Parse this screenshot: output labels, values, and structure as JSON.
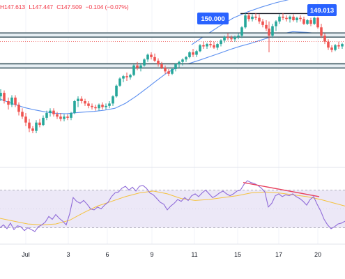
{
  "ohlc_readout": {
    "high": "H147.613",
    "low": "L147.447",
    "close": "C147.509",
    "change": "−0.104 (−0.07%)"
  },
  "chart_data": {
    "type": "candlestick",
    "title": "",
    "xlabel": "",
    "ylabel": "",
    "x_ticks": [
      "Jul",
      "3",
      "6",
      "9",
      "11",
      "15",
      "17",
      "20"
    ],
    "ylim": [
      143.8,
      150.6
    ],
    "price_labels": [
      "150.000",
      "149.013"
    ],
    "colors": {
      "up": "#26a69a",
      "down": "#ef5350",
      "ma": "#5b8ff0",
      "rsi": "#8f6ad8",
      "rsi_ma": "#f5c23e",
      "support": "#2f4a55",
      "annotation": "#e8425f"
    },
    "ma_line": [
      [
        0,
        146.44
      ],
      [
        8,
        146.35
      ],
      [
        20,
        146.22
      ],
      [
        35,
        146.08
      ],
      [
        50,
        145.98
      ],
      [
        65,
        145.9
      ],
      [
        80,
        145.84
      ],
      [
        95,
        145.82
      ],
      [
        108,
        145.86
      ],
      [
        120,
        145.89
      ],
      [
        135,
        145.92
      ],
      [
        150,
        145.97
      ],
      [
        165,
        146.05
      ],
      [
        180,
        146.26
      ],
      [
        195,
        146.55
      ],
      [
        210,
        146.88
      ],
      [
        225,
        147.22
      ],
      [
        240,
        147.55
      ],
      [
        255,
        147.78
      ],
      [
        270,
        147.92
      ],
      [
        285,
        148.06
      ],
      [
        300,
        148.21
      ],
      [
        315,
        148.36
      ],
      [
        330,
        148.52
      ],
      [
        345,
        148.66
      ],
      [
        360,
        148.78
      ],
      [
        375,
        148.92
      ],
      [
        390,
        149.06
      ],
      [
        405,
        149.19
      ],
      [
        420,
        149.27
      ],
      [
        440,
        149.24
      ],
      [
        460,
        149.19
      ],
      [
        480,
        149.2
      ],
      [
        495,
        149.2
      ]
    ],
    "ma_line_upper": [
      [
        275,
        148.72
      ],
      [
        295,
        149.12
      ],
      [
        315,
        149.5
      ],
      [
        335,
        149.85
      ],
      [
        355,
        150.1
      ],
      [
        375,
        150.3
      ],
      [
        395,
        150.48
      ],
      [
        415,
        150.62
      ]
    ],
    "horizontal_lines": [
      {
        "y": 149.13,
        "name": "resistance"
      },
      {
        "y": 147.83,
        "name": "support"
      },
      {
        "y": 148.86,
        "name": "dotted-last-price"
      }
    ],
    "trend_lines": [
      {
        "x1": 345,
        "y1": 150.03,
        "x2": 472,
        "y2": 150.03,
        "name": "top-line"
      }
    ],
    "candles": [
      [
        1,
        146.55,
        146.85,
        146.35,
        146.7
      ],
      [
        6,
        146.7,
        146.8,
        146.25,
        146.35
      ],
      [
        12,
        146.35,
        146.5,
        146.0,
        146.2
      ],
      [
        17,
        146.2,
        146.6,
        146.1,
        146.5
      ],
      [
        22,
        146.5,
        146.6,
        146.1,
        146.2
      ],
      [
        27,
        146.2,
        146.3,
        145.75,
        145.9
      ],
      [
        32,
        145.9,
        146.05,
        145.6,
        145.7
      ],
      [
        37,
        145.7,
        145.85,
        145.3,
        145.45
      ],
      [
        42,
        145.45,
        145.6,
        145.05,
        145.2
      ],
      [
        47,
        145.2,
        145.3,
        145.0,
        145.1
      ],
      [
        52,
        145.1,
        145.55,
        145.0,
        145.45
      ],
      [
        57,
        145.45,
        145.6,
        145.25,
        145.35
      ],
      [
        62,
        145.35,
        145.75,
        145.3,
        145.65
      ],
      [
        67,
        145.65,
        145.95,
        145.55,
        145.85
      ],
      [
        72,
        145.85,
        146.05,
        145.7,
        145.95
      ],
      [
        77,
        145.95,
        146.05,
        145.7,
        145.8
      ],
      [
        82,
        145.8,
        145.9,
        145.6,
        145.7
      ],
      [
        87,
        145.7,
        145.85,
        145.5,
        145.6
      ],
      [
        92,
        145.6,
        145.8,
        145.5,
        145.7
      ],
      [
        97,
        145.7,
        145.8,
        145.55,
        145.65
      ],
      [
        102,
        145.65,
        145.9,
        145.55,
        145.85
      ],
      [
        107,
        145.85,
        146.4,
        145.8,
        146.35
      ],
      [
        112,
        146.35,
        146.55,
        146.1,
        146.45
      ],
      [
        117,
        146.45,
        146.55,
        146.25,
        146.35
      ],
      [
        122,
        146.35,
        146.45,
        146.15,
        146.25
      ],
      [
        127,
        146.25,
        146.35,
        146.05,
        146.15
      ],
      [
        132,
        146.15,
        146.25,
        146.0,
        146.1
      ],
      [
        137,
        146.1,
        146.2,
        145.95,
        146.05
      ],
      [
        142,
        146.05,
        146.25,
        145.95,
        146.2
      ],
      [
        147,
        146.2,
        146.3,
        146.0,
        146.1
      ],
      [
        152,
        146.1,
        146.25,
        146.0,
        146.15
      ],
      [
        157,
        146.15,
        146.35,
        146.05,
        146.25
      ],
      [
        162,
        146.25,
        146.6,
        146.15,
        146.55
      ],
      [
        167,
        146.55,
        147.05,
        146.5,
        147.0
      ],
      [
        172,
        147.0,
        147.35,
        146.95,
        147.3
      ],
      [
        177,
        147.3,
        147.45,
        147.15,
        147.4
      ],
      [
        182,
        147.4,
        147.55,
        147.2,
        147.35
      ],
      [
        187,
        147.35,
        147.5,
        147.25,
        147.45
      ],
      [
        192,
        147.45,
        147.9,
        147.4,
        147.85
      ],
      [
        197,
        147.85,
        148.0,
        147.65,
        147.75
      ],
      [
        202,
        147.75,
        147.95,
        147.6,
        147.85
      ],
      [
        207,
        147.85,
        148.15,
        147.8,
        148.1
      ],
      [
        212,
        148.1,
        148.35,
        148.0,
        148.3
      ],
      [
        217,
        148.3,
        148.4,
        148.1,
        148.2
      ],
      [
        222,
        148.2,
        148.35,
        148.0,
        148.05
      ],
      [
        227,
        148.05,
        148.15,
        147.8,
        147.9
      ],
      [
        232,
        147.9,
        148.0,
        147.7,
        147.75
      ],
      [
        237,
        147.75,
        147.85,
        147.5,
        147.6
      ],
      [
        242,
        147.6,
        147.7,
        147.4,
        147.5
      ],
      [
        247,
        147.5,
        147.75,
        147.45,
        147.7
      ],
      [
        252,
        147.7,
        147.95,
        147.6,
        147.9
      ],
      [
        257,
        147.9,
        148.05,
        147.75,
        148.0
      ],
      [
        262,
        148.0,
        148.15,
        147.85,
        148.1
      ],
      [
        267,
        148.1,
        148.25,
        148.0,
        148.2
      ],
      [
        272,
        148.2,
        148.45,
        148.15,
        148.4
      ],
      [
        277,
        148.4,
        148.55,
        148.2,
        148.3
      ],
      [
        282,
        148.3,
        148.5,
        148.2,
        148.45
      ],
      [
        287,
        148.45,
        148.75,
        148.4,
        148.7
      ],
      [
        292,
        148.7,
        148.85,
        148.55,
        148.65
      ],
      [
        297,
        148.65,
        148.8,
        148.55,
        148.75
      ],
      [
        302,
        148.75,
        148.9,
        148.6,
        148.7
      ],
      [
        307,
        148.7,
        148.85,
        148.55,
        148.6
      ],
      [
        312,
        148.6,
        148.8,
        148.5,
        148.75
      ],
      [
        317,
        148.75,
        148.95,
        148.65,
        148.9
      ],
      [
        322,
        148.9,
        149.1,
        148.8,
        149.05
      ],
      [
        327,
        149.05,
        149.2,
        148.9,
        149.0
      ],
      [
        332,
        149.0,
        149.1,
        148.85,
        148.95
      ],
      [
        337,
        148.95,
        149.1,
        148.85,
        149.05
      ],
      [
        342,
        149.05,
        149.2,
        148.95,
        149.1
      ],
      [
        347,
        149.1,
        149.5,
        149.0,
        149.45
      ],
      [
        352,
        149.45,
        150.05,
        149.4,
        149.95
      ],
      [
        357,
        149.95,
        150.08,
        149.7,
        149.8
      ],
      [
        362,
        149.8,
        150.0,
        149.7,
        149.9
      ],
      [
        367,
        149.9,
        150.05,
        149.75,
        149.85
      ],
      [
        372,
        149.85,
        150.0,
        149.6,
        149.7
      ],
      [
        377,
        149.7,
        149.8,
        149.45,
        149.55
      ],
      [
        382,
        149.55,
        149.75,
        149.3,
        149.4
      ],
      [
        386,
        149.4,
        149.7,
        148.4,
        149.1
      ],
      [
        391,
        149.1,
        149.6,
        149.0,
        149.5
      ],
      [
        396,
        149.5,
        149.75,
        149.3,
        149.7
      ],
      [
        401,
        149.7,
        150.0,
        149.6,
        149.9
      ],
      [
        406,
        149.9,
        150.05,
        149.75,
        149.85
      ],
      [
        411,
        149.85,
        149.95,
        149.7,
        149.8
      ],
      [
        416,
        149.8,
        149.95,
        149.65,
        149.9
      ],
      [
        421,
        149.9,
        150.0,
        149.7,
        149.75
      ],
      [
        426,
        149.75,
        149.9,
        149.65,
        149.85
      ],
      [
        431,
        149.85,
        149.95,
        149.7,
        149.8
      ],
      [
        436,
        149.8,
        149.9,
        149.55,
        149.6
      ],
      [
        441,
        149.6,
        149.8,
        149.55,
        149.75
      ],
      [
        446,
        149.75,
        149.85,
        149.5,
        149.6
      ],
      [
        451,
        149.6,
        149.9,
        149.55,
        149.85
      ],
      [
        456,
        149.85,
        149.9,
        149.4,
        149.45
      ],
      [
        461,
        149.45,
        149.6,
        149.0,
        149.1
      ],
      [
        466,
        149.1,
        149.2,
        148.75,
        148.85
      ],
      [
        471,
        148.85,
        148.95,
        148.5,
        148.6
      ],
      [
        476,
        148.6,
        148.7,
        148.4,
        148.5
      ],
      [
        481,
        148.5,
        148.75,
        148.45,
        148.7
      ],
      [
        486,
        148.7,
        148.85,
        148.55,
        148.65
      ],
      [
        491,
        148.65,
        148.8,
        148.55,
        148.75
      ]
    ],
    "rsi": {
      "ylim": [
        20,
        80
      ],
      "levels": [
        70,
        30
      ],
      "line": [
        [
          0,
          30
        ],
        [
          5,
          33
        ],
        [
          10,
          29
        ],
        [
          15,
          35
        ],
        [
          20,
          28
        ],
        [
          25,
          32
        ],
        [
          30,
          31
        ],
        [
          35,
          27
        ],
        [
          40,
          30
        ],
        [
          45,
          28
        ],
        [
          50,
          26
        ],
        [
          55,
          31
        ],
        [
          60,
          33
        ],
        [
          65,
          36
        ],
        [
          70,
          42
        ],
        [
          75,
          39
        ],
        [
          80,
          44
        ],
        [
          85,
          40
        ],
        [
          90,
          37
        ],
        [
          95,
          33
        ],
        [
          100,
          45
        ],
        [
          105,
          62
        ],
        [
          110,
          58
        ],
        [
          115,
          56
        ],
        [
          120,
          59
        ],
        [
          125,
          55
        ],
        [
          130,
          50
        ],
        [
          135,
          49
        ],
        [
          140,
          52
        ],
        [
          145,
          50
        ],
        [
          150,
          54
        ],
        [
          155,
          57
        ],
        [
          160,
          63
        ],
        [
          165,
          67
        ],
        [
          170,
          68
        ],
        [
          175,
          72
        ],
        [
          180,
          74
        ],
        [
          185,
          70
        ],
        [
          190,
          73
        ],
        [
          195,
          69
        ],
        [
          200,
          74
        ],
        [
          205,
          75
        ],
        [
          210,
          72
        ],
        [
          215,
          67
        ],
        [
          220,
          65
        ],
        [
          225,
          61
        ],
        [
          230,
          57
        ],
        [
          235,
          55
        ],
        [
          240,
          49
        ],
        [
          245,
          53
        ],
        [
          250,
          56
        ],
        [
          255,
          60
        ],
        [
          260,
          58
        ],
        [
          265,
          62
        ],
        [
          270,
          59
        ],
        [
          275,
          64
        ],
        [
          280,
          66
        ],
        [
          285,
          63
        ],
        [
          290,
          67
        ],
        [
          295,
          70
        ],
        [
          300,
          66
        ],
        [
          305,
          62
        ],
        [
          310,
          64
        ],
        [
          315,
          67
        ],
        [
          320,
          69
        ],
        [
          325,
          66
        ],
        [
          330,
          64
        ],
        [
          335,
          66
        ],
        [
          340,
          69
        ],
        [
          345,
          70
        ],
        [
          350,
          76
        ],
        [
          355,
          80
        ],
        [
          360,
          78
        ],
        [
          365,
          77
        ],
        [
          370,
          75
        ],
        [
          375,
          72
        ],
        [
          380,
          68
        ],
        [
          385,
          52
        ],
        [
          390,
          56
        ],
        [
          395,
          64
        ],
        [
          400,
          66
        ],
        [
          405,
          63
        ],
        [
          410,
          65
        ],
        [
          415,
          64
        ],
        [
          420,
          66
        ],
        [
          425,
          63
        ],
        [
          430,
          61
        ],
        [
          435,
          58
        ],
        [
          440,
          54
        ],
        [
          445,
          60
        ],
        [
          450,
          63
        ],
        [
          455,
          55
        ],
        [
          460,
          48
        ],
        [
          465,
          39
        ],
        [
          470,
          33
        ],
        [
          475,
          29
        ],
        [
          480,
          31
        ],
        [
          485,
          34
        ],
        [
          490,
          35
        ],
        [
          495,
          37
        ]
      ],
      "ma": [
        [
          0,
          40
        ],
        [
          20,
          37
        ],
        [
          40,
          34
        ],
        [
          60,
          33
        ],
        [
          80,
          34
        ],
        [
          100,
          38
        ],
        [
          120,
          46
        ],
        [
          140,
          53
        ],
        [
          160,
          58
        ],
        [
          180,
          63
        ],
        [
          200,
          67
        ],
        [
          220,
          69
        ],
        [
          240,
          66
        ],
        [
          260,
          61
        ],
        [
          280,
          59
        ],
        [
          300,
          60
        ],
        [
          320,
          62
        ],
        [
          340,
          64
        ],
        [
          360,
          67
        ],
        [
          380,
          68
        ],
        [
          400,
          67
        ],
        [
          420,
          65
        ],
        [
          440,
          63
        ],
        [
          460,
          60
        ],
        [
          480,
          56
        ],
        [
          495,
          53
        ]
      ],
      "trend_line": [
        [
          349,
          78
        ],
        [
          458,
          63
        ]
      ]
    }
  }
}
